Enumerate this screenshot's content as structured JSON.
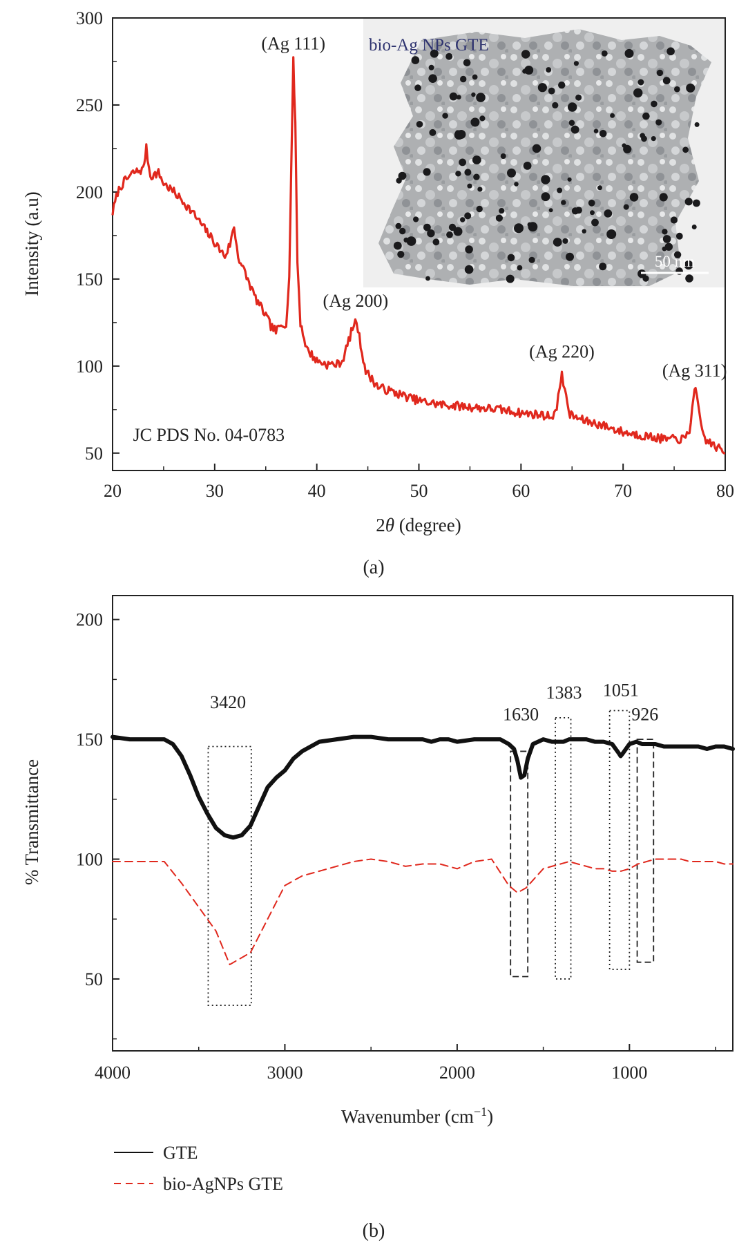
{
  "chart_data": [
    {
      "id": "a",
      "type": "line",
      "panel_label": "(a)",
      "xlabel": "2θ (degree)",
      "ylabel": "Intensity (a.u)",
      "xlim": [
        20,
        80
      ],
      "ylim": [
        40,
        300
      ],
      "xticks": [
        20,
        30,
        40,
        50,
        60,
        70,
        80
      ],
      "yticks": [
        50,
        100,
        150,
        200,
        250,
        300
      ],
      "grid": false,
      "series": [
        {
          "color": "#e0281d",
          "style": "solid",
          "x": [
            20,
            20.5,
            21,
            22,
            23,
            23.3,
            23.7,
            24.5,
            25,
            26,
            27,
            28,
            29,
            30,
            31,
            31.5,
            31.9,
            32.3,
            33,
            34,
            35,
            35.5,
            36,
            36.5,
            37,
            37.3,
            37.5,
            37.7,
            37.9,
            38.1,
            38.4,
            39,
            40,
            41,
            42,
            42.5,
            43,
            43.5,
            43.9,
            44.3,
            44.8,
            46,
            48,
            50,
            52,
            54,
            56,
            58,
            60,
            62,
            63,
            63.5,
            63.8,
            64,
            64.3,
            64.8,
            66,
            68,
            70,
            72,
            74,
            75,
            76,
            76.5,
            76.9,
            77.1,
            77.5,
            78,
            79,
            80
          ],
          "y": [
            188,
            200,
            205,
            211,
            213,
            225,
            209,
            211,
            205,
            200,
            194,
            187,
            179,
            171,
            163,
            170,
            180,
            163,
            153,
            139,
            129,
            123,
            120,
            123,
            125,
            150,
            215,
            275,
            240,
            160,
            125,
            110,
            103,
            101,
            101,
            103,
            112,
            122,
            126,
            112,
            97,
            88,
            84,
            80,
            78,
            77,
            76,
            75,
            73,
            72,
            71,
            75,
            88,
            97,
            85,
            72,
            69,
            66,
            62,
            60,
            58,
            58,
            58,
            62,
            84,
            86,
            70,
            58,
            54,
            50
          ]
        }
      ],
      "annotations": [
        {
          "text": "(Ag 111)",
          "x": 37.7,
          "y": 282
        },
        {
          "text": "(Ag 200)",
          "x": 43.8,
          "y": 134
        },
        {
          "text": "(Ag 220)",
          "x": 64.0,
          "y": 105
        },
        {
          "text": "(Ag 311)",
          "x": 77.0,
          "y": 94
        },
        {
          "text": "JC PDS No. 04-0783",
          "x": 22,
          "y": 57
        }
      ],
      "inset": {
        "title": "bio-Ag NPs GTE",
        "scale_bar": "50 nm"
      }
    },
    {
      "id": "b",
      "type": "line",
      "panel_label": "(b)",
      "xlabel": "Wavenumber (cm",
      "xlabel_superscript": "−1",
      "xlabel_suffix": ")",
      "ylabel": "% Transmittance",
      "xlim": [
        4000,
        400
      ],
      "ylim": [
        20,
        210
      ],
      "xticks": [
        4000,
        3000,
        2000,
        1000
      ],
      "yticks": [
        50,
        100,
        150,
        200
      ],
      "grid": false,
      "series": [
        {
          "name": "GTE",
          "color": "#111111",
          "style": "solid",
          "x": [
            4000,
            3900,
            3800,
            3700,
            3650,
            3600,
            3550,
            3500,
            3450,
            3400,
            3350,
            3300,
            3250,
            3200,
            3150,
            3100,
            3050,
            3000,
            2950,
            2900,
            2800,
            2700,
            2600,
            2500,
            2400,
            2300,
            2200,
            2150,
            2100,
            2050,
            2000,
            1900,
            1800,
            1750,
            1700,
            1670,
            1650,
            1630,
            1610,
            1590,
            1560,
            1500,
            1450,
            1400,
            1383,
            1350,
            1300,
            1250,
            1200,
            1150,
            1100,
            1080,
            1060,
            1051,
            1040,
            1020,
            1000,
            960,
            926,
            900,
            850,
            800,
            750,
            700,
            650,
            600,
            550,
            500,
            450,
            400
          ],
          "y": [
            151,
            150,
            150,
            150,
            148,
            143,
            135,
            126,
            119,
            113,
            110,
            109,
            110,
            114,
            122,
            130,
            134,
            137,
            142,
            145,
            149,
            150,
            151,
            151,
            150,
            150,
            150,
            149,
            150,
            150,
            149,
            150,
            150,
            150,
            148,
            146,
            141,
            134,
            135,
            142,
            148,
            150,
            149,
            149,
            149,
            150,
            150,
            150,
            149,
            149,
            148,
            146,
            144,
            143,
            144,
            146,
            148,
            149,
            148,
            148,
            148,
            147,
            147,
            147,
            147,
            147,
            146,
            147,
            147,
            146
          ]
        },
        {
          "name": "bio-AgNPs GTE",
          "color": "#e0281d",
          "style": "dashed",
          "x": [
            4000,
            3900,
            3800,
            3700,
            3600,
            3500,
            3400,
            3320,
            3200,
            3100,
            3000,
            2900,
            2800,
            2700,
            2600,
            2500,
            2400,
            2300,
            2200,
            2100,
            2000,
            1900,
            1800,
            1700,
            1650,
            1600,
            1500,
            1450,
            1400,
            1350,
            1300,
            1250,
            1200,
            1150,
            1100,
            1050,
            1000,
            950,
            900,
            850,
            800,
            750,
            700,
            650,
            600,
            550,
            500,
            450,
            400
          ],
          "y": [
            99,
            99,
            99,
            99,
            90,
            80,
            70,
            56,
            61,
            75,
            89,
            93,
            95,
            97,
            99,
            100,
            99,
            97,
            98,
            98,
            96,
            99,
            100,
            89,
            86,
            88,
            96,
            97,
            98,
            99,
            98,
            97,
            96,
            96,
            95,
            95,
            96,
            98,
            99,
            100,
            100,
            100,
            100,
            99,
            99,
            99,
            99,
            98,
            98
          ]
        }
      ],
      "annotations": [
        {
          "text": "3420",
          "x": 3330,
          "y": 163
        },
        {
          "text": "1630",
          "x": 1630,
          "y": 158
        },
        {
          "text": "1383",
          "x": 1380,
          "y": 167
        },
        {
          "text": "1051",
          "x": 1050,
          "y": 168
        },
        {
          "text": "926",
          "x": 910,
          "y": 158
        }
      ],
      "boxes": [
        {
          "x1": 3445,
          "x2": 3195,
          "y1": 39,
          "y2": 147,
          "style": "dotted"
        },
        {
          "x1": 1690,
          "x2": 1590,
          "y1": 51,
          "y2": 145,
          "style": "dashed"
        },
        {
          "x1": 1430,
          "x2": 1340,
          "y1": 50,
          "y2": 159,
          "style": "dotted"
        },
        {
          "x1": 1115,
          "x2": 1000,
          "y1": 54,
          "y2": 162,
          "style": "dotted"
        },
        {
          "x1": 955,
          "x2": 860,
          "y1": 57,
          "y2": 150,
          "style": "dashed"
        }
      ],
      "legend": {
        "placement": "bottom-left",
        "items": [
          "GTE",
          "bio-AgNPs GTE"
        ]
      }
    }
  ]
}
